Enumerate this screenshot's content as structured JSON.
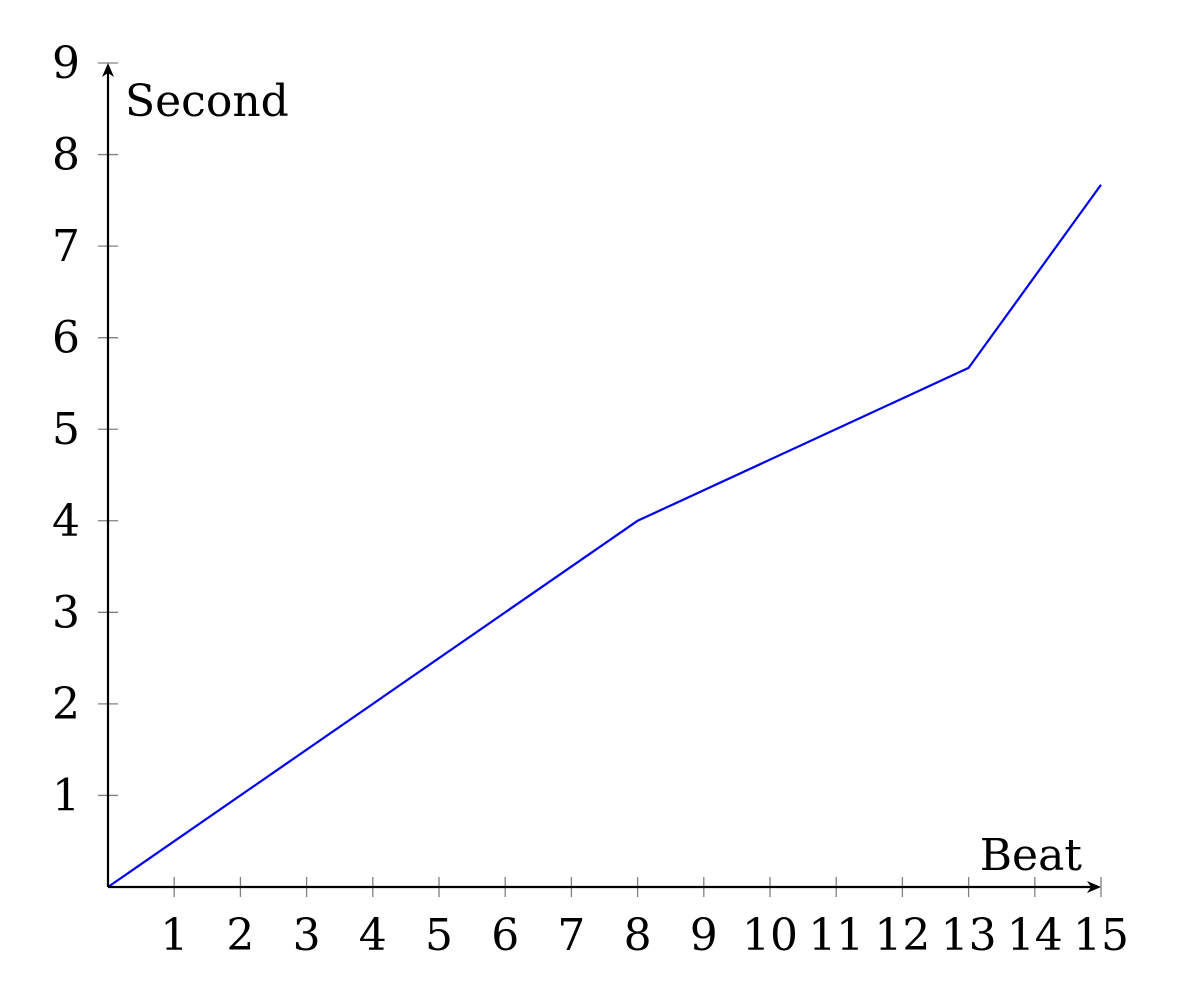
{
  "chart_data": {
    "type": "line",
    "xlabel": "Beat",
    "ylabel": "Second",
    "xlim": [
      0,
      15
    ],
    "ylim": [
      0,
      9
    ],
    "xticks": [
      "1",
      "2",
      "3",
      "4",
      "5",
      "6",
      "7",
      "8",
      "9",
      "10",
      "11",
      "12",
      "13",
      "14",
      "15"
    ],
    "yticks": [
      "1",
      "2",
      "3",
      "4",
      "5",
      "6",
      "7",
      "8",
      "9"
    ],
    "grid": false,
    "series": [
      {
        "color": "#0000ee",
        "x": [
          0,
          8,
          13,
          15
        ],
        "y": [
          0,
          4,
          5.67,
          7.67
        ]
      }
    ]
  }
}
